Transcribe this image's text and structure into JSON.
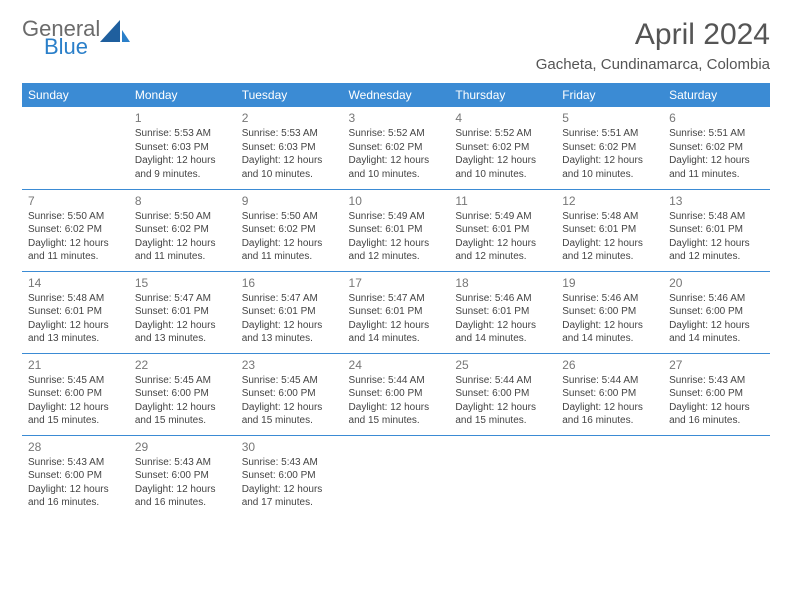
{
  "logo": {
    "word1": "General",
    "word2": "Blue",
    "color1": "#6b6b6b",
    "color2": "#2a7fc9"
  },
  "title": "April 2024",
  "location": "Gacheta, Cundinamarca, Colombia",
  "header_bg": "#3b8bd4",
  "header_fg": "#ffffff",
  "divider_color": "#3b8bd4",
  "daylabels": [
    "Sunday",
    "Monday",
    "Tuesday",
    "Wednesday",
    "Thursday",
    "Friday",
    "Saturday"
  ],
  "weeks": [
    [
      null,
      {
        "n": "1",
        "sr": "Sunrise: 5:53 AM",
        "ss": "Sunset: 6:03 PM",
        "dl": "Daylight: 12 hours and 9 minutes."
      },
      {
        "n": "2",
        "sr": "Sunrise: 5:53 AM",
        "ss": "Sunset: 6:03 PM",
        "dl": "Daylight: 12 hours and 10 minutes."
      },
      {
        "n": "3",
        "sr": "Sunrise: 5:52 AM",
        "ss": "Sunset: 6:02 PM",
        "dl": "Daylight: 12 hours and 10 minutes."
      },
      {
        "n": "4",
        "sr": "Sunrise: 5:52 AM",
        "ss": "Sunset: 6:02 PM",
        "dl": "Daylight: 12 hours and 10 minutes."
      },
      {
        "n": "5",
        "sr": "Sunrise: 5:51 AM",
        "ss": "Sunset: 6:02 PM",
        "dl": "Daylight: 12 hours and 10 minutes."
      },
      {
        "n": "6",
        "sr": "Sunrise: 5:51 AM",
        "ss": "Sunset: 6:02 PM",
        "dl": "Daylight: 12 hours and 11 minutes."
      }
    ],
    [
      {
        "n": "7",
        "sr": "Sunrise: 5:50 AM",
        "ss": "Sunset: 6:02 PM",
        "dl": "Daylight: 12 hours and 11 minutes."
      },
      {
        "n": "8",
        "sr": "Sunrise: 5:50 AM",
        "ss": "Sunset: 6:02 PM",
        "dl": "Daylight: 12 hours and 11 minutes."
      },
      {
        "n": "9",
        "sr": "Sunrise: 5:50 AM",
        "ss": "Sunset: 6:02 PM",
        "dl": "Daylight: 12 hours and 11 minutes."
      },
      {
        "n": "10",
        "sr": "Sunrise: 5:49 AM",
        "ss": "Sunset: 6:01 PM",
        "dl": "Daylight: 12 hours and 12 minutes."
      },
      {
        "n": "11",
        "sr": "Sunrise: 5:49 AM",
        "ss": "Sunset: 6:01 PM",
        "dl": "Daylight: 12 hours and 12 minutes."
      },
      {
        "n": "12",
        "sr": "Sunrise: 5:48 AM",
        "ss": "Sunset: 6:01 PM",
        "dl": "Daylight: 12 hours and 12 minutes."
      },
      {
        "n": "13",
        "sr": "Sunrise: 5:48 AM",
        "ss": "Sunset: 6:01 PM",
        "dl": "Daylight: 12 hours and 12 minutes."
      }
    ],
    [
      {
        "n": "14",
        "sr": "Sunrise: 5:48 AM",
        "ss": "Sunset: 6:01 PM",
        "dl": "Daylight: 12 hours and 13 minutes."
      },
      {
        "n": "15",
        "sr": "Sunrise: 5:47 AM",
        "ss": "Sunset: 6:01 PM",
        "dl": "Daylight: 12 hours and 13 minutes."
      },
      {
        "n": "16",
        "sr": "Sunrise: 5:47 AM",
        "ss": "Sunset: 6:01 PM",
        "dl": "Daylight: 12 hours and 13 minutes."
      },
      {
        "n": "17",
        "sr": "Sunrise: 5:47 AM",
        "ss": "Sunset: 6:01 PM",
        "dl": "Daylight: 12 hours and 14 minutes."
      },
      {
        "n": "18",
        "sr": "Sunrise: 5:46 AM",
        "ss": "Sunset: 6:01 PM",
        "dl": "Daylight: 12 hours and 14 minutes."
      },
      {
        "n": "19",
        "sr": "Sunrise: 5:46 AM",
        "ss": "Sunset: 6:00 PM",
        "dl": "Daylight: 12 hours and 14 minutes."
      },
      {
        "n": "20",
        "sr": "Sunrise: 5:46 AM",
        "ss": "Sunset: 6:00 PM",
        "dl": "Daylight: 12 hours and 14 minutes."
      }
    ],
    [
      {
        "n": "21",
        "sr": "Sunrise: 5:45 AM",
        "ss": "Sunset: 6:00 PM",
        "dl": "Daylight: 12 hours and 15 minutes."
      },
      {
        "n": "22",
        "sr": "Sunrise: 5:45 AM",
        "ss": "Sunset: 6:00 PM",
        "dl": "Daylight: 12 hours and 15 minutes."
      },
      {
        "n": "23",
        "sr": "Sunrise: 5:45 AM",
        "ss": "Sunset: 6:00 PM",
        "dl": "Daylight: 12 hours and 15 minutes."
      },
      {
        "n": "24",
        "sr": "Sunrise: 5:44 AM",
        "ss": "Sunset: 6:00 PM",
        "dl": "Daylight: 12 hours and 15 minutes."
      },
      {
        "n": "25",
        "sr": "Sunrise: 5:44 AM",
        "ss": "Sunset: 6:00 PM",
        "dl": "Daylight: 12 hours and 15 minutes."
      },
      {
        "n": "26",
        "sr": "Sunrise: 5:44 AM",
        "ss": "Sunset: 6:00 PM",
        "dl": "Daylight: 12 hours and 16 minutes."
      },
      {
        "n": "27",
        "sr": "Sunrise: 5:43 AM",
        "ss": "Sunset: 6:00 PM",
        "dl": "Daylight: 12 hours and 16 minutes."
      }
    ],
    [
      {
        "n": "28",
        "sr": "Sunrise: 5:43 AM",
        "ss": "Sunset: 6:00 PM",
        "dl": "Daylight: 12 hours and 16 minutes."
      },
      {
        "n": "29",
        "sr": "Sunrise: 5:43 AM",
        "ss": "Sunset: 6:00 PM",
        "dl": "Daylight: 12 hours and 16 minutes."
      },
      {
        "n": "30",
        "sr": "Sunrise: 5:43 AM",
        "ss": "Sunset: 6:00 PM",
        "dl": "Daylight: 12 hours and 17 minutes."
      },
      null,
      null,
      null,
      null
    ]
  ]
}
